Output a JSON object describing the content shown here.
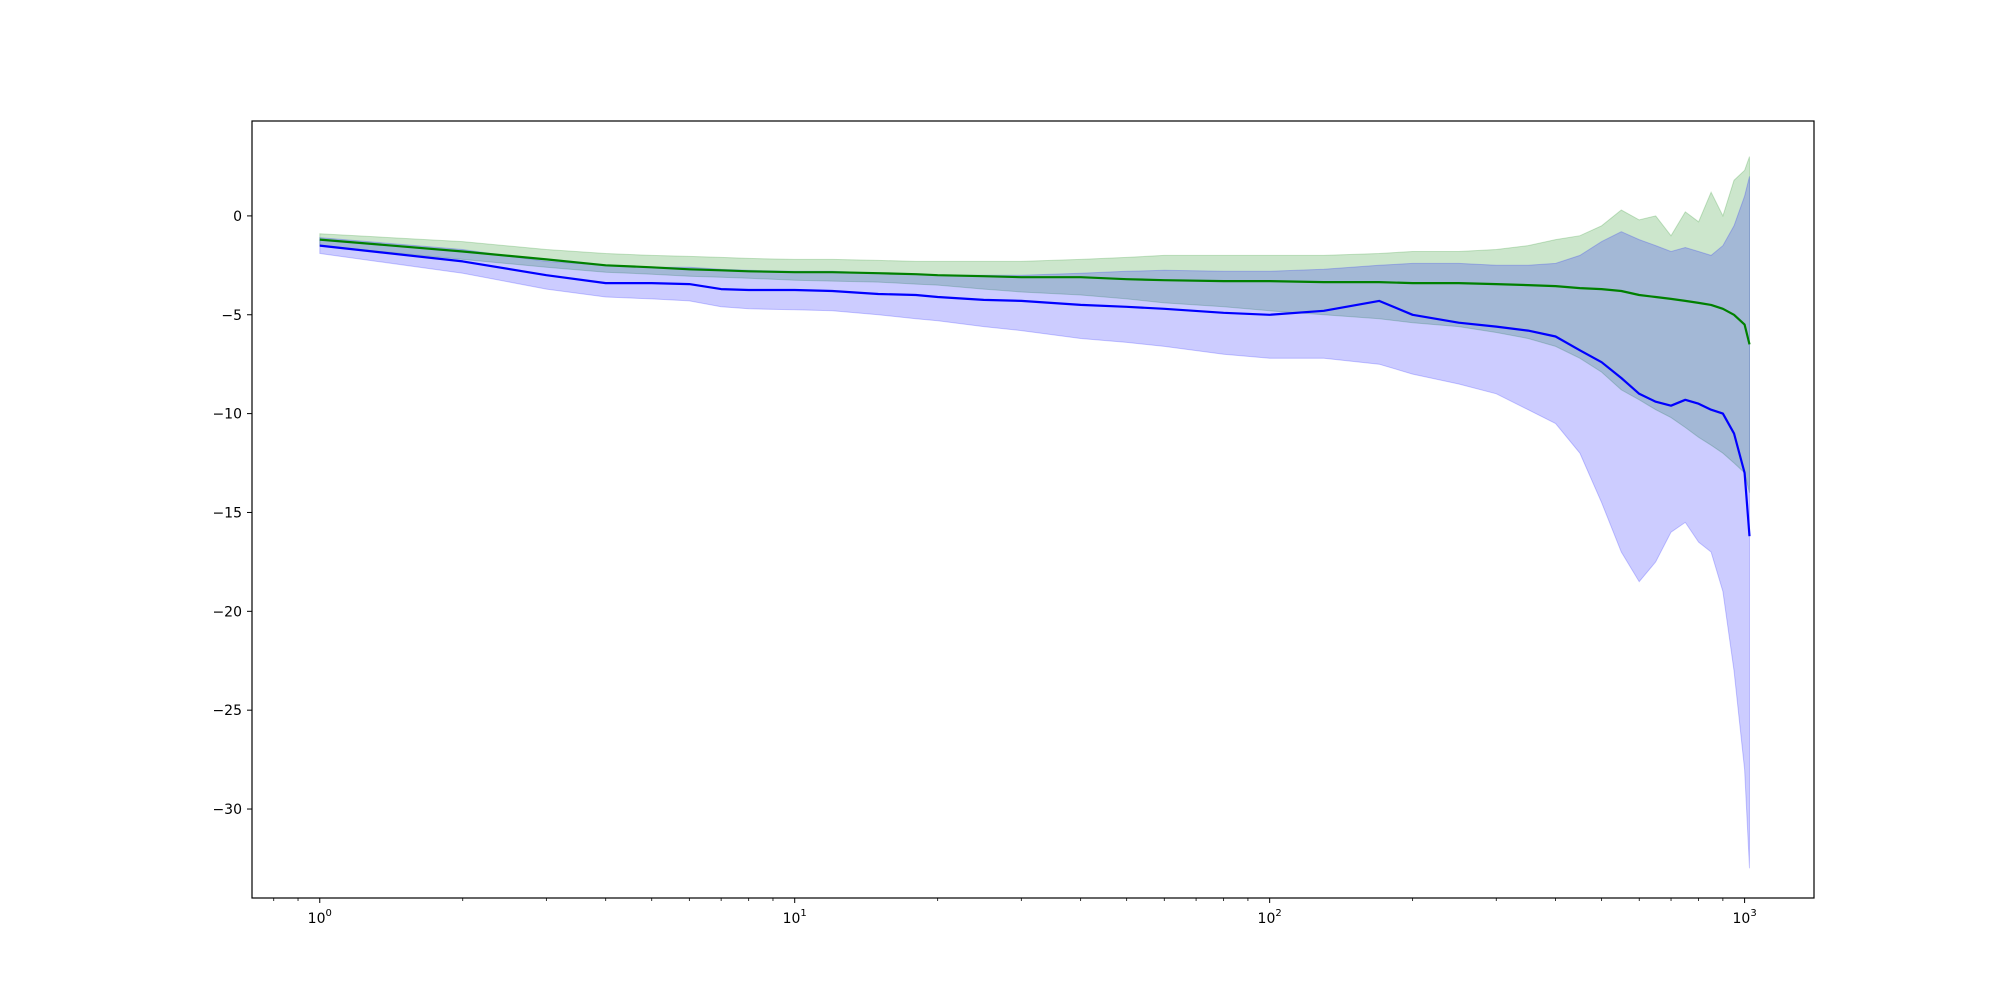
{
  "chart_data": {
    "type": "line",
    "title": "",
    "xlabel": "",
    "ylabel": "",
    "xscale": "log",
    "xlim": [
      0.72,
      1400
    ],
    "ylim": [
      -34.5,
      4.8
    ],
    "grid": false,
    "legend": "none",
    "x_tick_labels": [
      {
        "value": 1,
        "base": "10",
        "exp": "0"
      },
      {
        "value": 10,
        "base": "10",
        "exp": "1"
      },
      {
        "value": 100,
        "base": "10",
        "exp": "2"
      },
      {
        "value": 1000,
        "base": "10",
        "exp": "3"
      }
    ],
    "y_tick_labels": [
      {
        "value": 0,
        "label": "0"
      },
      {
        "value": -5,
        "label": "−5"
      },
      {
        "value": -10,
        "label": "−10"
      },
      {
        "value": -15,
        "label": "−15"
      },
      {
        "value": -20,
        "label": "−20"
      },
      {
        "value": -25,
        "label": "−25"
      },
      {
        "value": -30,
        "label": "−30"
      }
    ],
    "series": [
      {
        "color": "#008000",
        "band_color": "#008000",
        "band_opacity": 0.2,
        "x": [
          1,
          2,
          3,
          4,
          5,
          6,
          7,
          8,
          10,
          12,
          15,
          18,
          20,
          25,
          30,
          40,
          50,
          60,
          80,
          100,
          130,
          170,
          200,
          250,
          300,
          350,
          400,
          450,
          500,
          550,
          600,
          650,
          700,
          750,
          800,
          850,
          900,
          950,
          1000,
          1024
        ],
        "mean": [
          -1.2,
          -1.8,
          -2.2,
          -2.5,
          -2.6,
          -2.7,
          -2.75,
          -2.8,
          -2.85,
          -2.85,
          -2.9,
          -2.95,
          -3.0,
          -3.05,
          -3.1,
          -3.1,
          -3.2,
          -3.25,
          -3.3,
          -3.3,
          -3.35,
          -3.35,
          -3.4,
          -3.4,
          -3.45,
          -3.5,
          -3.55,
          -3.65,
          -3.7,
          -3.8,
          -4.0,
          -4.1,
          -4.2,
          -4.3,
          -4.4,
          -4.5,
          -4.7,
          -5.0,
          -5.5,
          -6.5
        ],
        "upper": [
          -0.9,
          -1.3,
          -1.7,
          -1.9,
          -2.0,
          -2.05,
          -2.1,
          -2.15,
          -2.2,
          -2.2,
          -2.25,
          -2.3,
          -2.3,
          -2.3,
          -2.3,
          -2.2,
          -2.1,
          -2.0,
          -2.0,
          -2.0,
          -2.0,
          -1.9,
          -1.8,
          -1.8,
          -1.7,
          -1.5,
          -1.2,
          -1.0,
          -0.5,
          0.3,
          -0.2,
          0.0,
          -1.0,
          0.2,
          -0.3,
          1.2,
          0.0,
          1.8,
          2.3,
          3.0
        ],
        "lower": [
          -1.5,
          -2.2,
          -2.6,
          -2.85,
          -2.95,
          -3.05,
          -3.1,
          -3.15,
          -3.25,
          -3.3,
          -3.35,
          -3.45,
          -3.5,
          -3.7,
          -3.85,
          -4.0,
          -4.2,
          -4.4,
          -4.6,
          -4.8,
          -5.0,
          -5.2,
          -5.4,
          -5.6,
          -5.9,
          -6.2,
          -6.6,
          -7.2,
          -7.9,
          -8.8,
          -9.3,
          -9.8,
          -10.2,
          -10.7,
          -11.2,
          -11.6,
          -12.0,
          -12.5,
          -13.0,
          -14.0
        ]
      },
      {
        "color": "#0000ff",
        "band_color": "#0000ff",
        "band_opacity": 0.2,
        "x": [
          1,
          2,
          3,
          4,
          5,
          6,
          7,
          8,
          10,
          12,
          15,
          18,
          20,
          25,
          30,
          40,
          50,
          60,
          80,
          100,
          130,
          170,
          200,
          250,
          300,
          350,
          400,
          450,
          500,
          550,
          600,
          650,
          700,
          750,
          800,
          850,
          900,
          950,
          1000,
          1024
        ],
        "mean": [
          -1.5,
          -2.3,
          -3.0,
          -3.4,
          -3.4,
          -3.45,
          -3.7,
          -3.75,
          -3.75,
          -3.8,
          -3.95,
          -4.0,
          -4.1,
          -4.25,
          -4.3,
          -4.5,
          -4.6,
          -4.7,
          -4.9,
          -5.0,
          -4.8,
          -4.3,
          -5.0,
          -5.4,
          -5.6,
          -5.8,
          -6.1,
          -6.8,
          -7.4,
          -8.2,
          -9.0,
          -9.4,
          -9.6,
          -9.3,
          -9.5,
          -9.8,
          -10.0,
          -11.0,
          -13.0,
          -16.2
        ],
        "upper": [
          -1.1,
          -1.7,
          -2.3,
          -2.5,
          -2.6,
          -2.6,
          -2.7,
          -2.75,
          -2.8,
          -2.8,
          -2.9,
          -2.95,
          -3.0,
          -3.0,
          -3.0,
          -2.9,
          -2.8,
          -2.75,
          -2.8,
          -2.8,
          -2.7,
          -2.5,
          -2.4,
          -2.4,
          -2.5,
          -2.5,
          -2.4,
          -2.0,
          -1.3,
          -0.8,
          -1.2,
          -1.5,
          -1.8,
          -1.6,
          -1.8,
          -2.0,
          -1.5,
          -0.5,
          1.0,
          2.0
        ],
        "lower": [
          -1.9,
          -2.9,
          -3.7,
          -4.1,
          -4.2,
          -4.3,
          -4.6,
          -4.7,
          -4.75,
          -4.8,
          -5.0,
          -5.2,
          -5.3,
          -5.6,
          -5.8,
          -6.2,
          -6.4,
          -6.6,
          -7.0,
          -7.2,
          -7.2,
          -7.5,
          -8.0,
          -8.5,
          -9.0,
          -9.8,
          -10.5,
          -12.0,
          -14.5,
          -17.0,
          -18.5,
          -17.5,
          -16.0,
          -15.5,
          -16.5,
          -17.0,
          -19.0,
          -23.0,
          -28.0,
          -33.0
        ]
      }
    ]
  }
}
